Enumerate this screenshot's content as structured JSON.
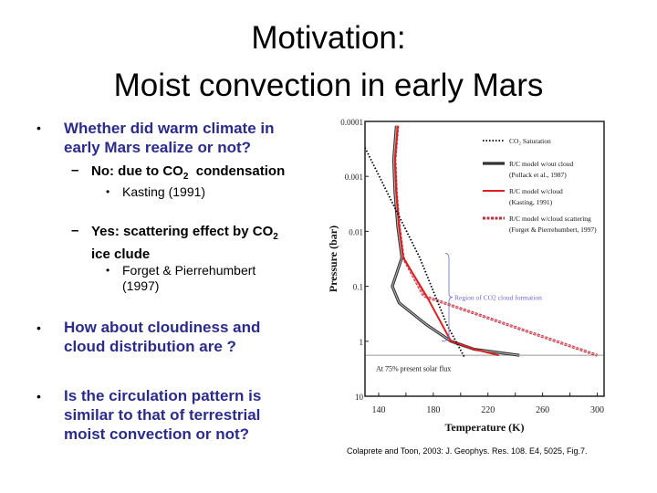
{
  "title": {
    "line1": "Motivation:",
    "line2": "Moist convection in early Mars"
  },
  "bullets": [
    {
      "text_line1": "Whether did warm climate in",
      "text_line2": "early Mars realize or not?"
    },
    {
      "text_line1": "How about cloudiness and",
      "text_line2": "cloud distribution are ?"
    },
    {
      "text_line1": "Is the circulation pattern is",
      "text_line2": "similar to that of terrestrial",
      "text_line3": "moist convection or not?"
    }
  ],
  "sub_bullets": {
    "no": {
      "dash": "–",
      "text": "No: due to CO",
      "sub": "2",
      "text_after": "  condensation",
      "ref": "Kasting (1991)"
    },
    "yes": {
      "dash": "–",
      "text": "Yes: scattering effect by CO",
      "sub": "2",
      "text_line2": "ice clude",
      "ref_line1": "Forget & Pierrehumbert",
      "ref_line2": "(1997)"
    }
  },
  "bullet_glyph": "•",
  "citation": "Colaprete and Toon, 2003: J. Geophys. Res. 108. E4, 5025, Fig.7.",
  "chart_data": {
    "type": "line",
    "title": "",
    "xlabel": "Temperature (K)",
    "ylabel": "Pressure (bar)",
    "xlim": [
      130,
      305
    ],
    "ylim": [
      0.0001,
      10
    ],
    "yscale": "log-inverted",
    "xticks": [
      "140",
      "180",
      "220",
      "260",
      "300"
    ],
    "xtick_values": [
      140,
      180,
      220,
      260,
      300
    ],
    "yticks": [
      "0.0001",
      "0.001",
      "0.01",
      "0.1",
      "1",
      "10"
    ],
    "ytick_values": [
      0.0001,
      0.001,
      0.01,
      0.1,
      1,
      10
    ],
    "annotation_region": "Region of CO2 cloud formation",
    "annotation_flux": "At 75% present solar flux",
    "surface_pressure": 1.8,
    "colors": {
      "saturation": "#000000",
      "no_cloud": "#333333",
      "cloud": "#e02020",
      "scattering": "#c03040",
      "region": "#6a6ad0",
      "surface": "#999999"
    },
    "series": [
      {
        "name": "CO₂ Saturation",
        "sub_ref": "",
        "style": "dotted",
        "x": [
          130,
          150,
          170,
          190,
          203
        ],
        "y": [
          0.0003,
          0.003,
          0.03,
          0.5,
          2.0
        ]
      },
      {
        "name": "R/C model w/out cloud",
        "sub_ref": "(Pollack et al., 1987)",
        "style": "double",
        "x": [
          153,
          151,
          152,
          154,
          157,
          153,
          150,
          155,
          175,
          193,
          210,
          243
        ],
        "y": [
          0.00012,
          0.0005,
          0.002,
          0.008,
          0.03,
          0.06,
          0.1,
          0.2,
          0.5,
          1.0,
          1.4,
          1.8
        ]
      },
      {
        "name": "R/C model w/cloud",
        "sub_ref": "(Kasting, 1991)",
        "style": "solid",
        "x": [
          154,
          152,
          153,
          155,
          158,
          175,
          193,
          210,
          228
        ],
        "y": [
          0.00012,
          0.0005,
          0.002,
          0.008,
          0.03,
          0.15,
          1.0,
          1.4,
          1.8
        ]
      },
      {
        "name": "R/C model w/cloud scattering",
        "sub_ref": "(Forget & Pierrehumbert, 1997)",
        "style": "dashed",
        "x": [
          154,
          152,
          153,
          155,
          158,
          173,
          300
        ],
        "y": [
          0.00012,
          0.0005,
          0.002,
          0.008,
          0.03,
          0.15,
          1.8
        ]
      }
    ]
  }
}
